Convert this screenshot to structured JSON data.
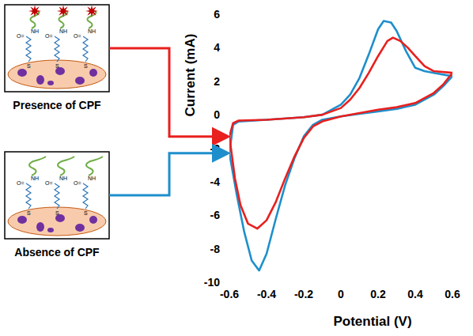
{
  "chart_data": {
    "type": "line",
    "x_label": "Potential (V)",
    "y_label": "Current (mA)",
    "xlim": [
      -0.6,
      0.6
    ],
    "xticks": [
      -0.6,
      -0.4,
      -0.2,
      0,
      0.2,
      0.4,
      0.6
    ],
    "ylim": [
      -10,
      6
    ],
    "yticks": [
      -10,
      -8,
      -6,
      -4,
      -2,
      0,
      2,
      4,
      6
    ],
    "grid": false,
    "series": [
      {
        "name": "Presence of CPF",
        "color": "#e8201e",
        "x": [
          -0.6,
          -0.58,
          -0.55,
          -0.4,
          -0.2,
          -0.1,
          0,
          0.05,
          0.1,
          0.15,
          0.2,
          0.25,
          0.28,
          0.32,
          0.36,
          0.4,
          0.45,
          0.5,
          0.6,
          0.55,
          0.5,
          0.4,
          0.3,
          0.2,
          0.1,
          0,
          -0.1,
          -0.15,
          -0.2,
          -0.25,
          -0.3,
          -0.35,
          -0.4,
          -0.45,
          -0.5,
          -0.54,
          -0.57,
          -0.6
        ],
        "values": [
          -1.3,
          -0.5,
          -0.35,
          -0.3,
          -0.15,
          0,
          0.4,
          0.9,
          1.6,
          2.5,
          3.5,
          4.4,
          4.6,
          4.4,
          4.0,
          3.5,
          2.9,
          2.6,
          2.5,
          1.8,
          1.3,
          0.7,
          0.45,
          0.3,
          0.1,
          -0.1,
          -0.4,
          -0.7,
          -1.4,
          -2.5,
          -3.8,
          -5.2,
          -6.3,
          -6.8,
          -6.5,
          -5.4,
          -3.8,
          -1.3
        ]
      },
      {
        "name": "Absence of CPF",
        "color": "#1e8fcc",
        "x": [
          -0.6,
          -0.58,
          -0.55,
          -0.4,
          -0.2,
          -0.1,
          0,
          0.05,
          0.1,
          0.15,
          0.2,
          0.23,
          0.27,
          0.3,
          0.35,
          0.4,
          0.45,
          0.5,
          0.6,
          0.55,
          0.5,
          0.4,
          0.3,
          0.2,
          0.1,
          0,
          -0.1,
          -0.15,
          -0.2,
          -0.25,
          -0.3,
          -0.35,
          -0.4,
          -0.44,
          -0.48,
          -0.52,
          -0.56,
          -0.6
        ],
        "values": [
          -2.3,
          -0.6,
          -0.4,
          -0.3,
          -0.15,
          0,
          0.6,
          1.2,
          2.2,
          3.6,
          5.1,
          5.6,
          5.5,
          5.0,
          3.8,
          2.8,
          2.6,
          2.5,
          2.3,
          1.7,
          1.2,
          0.6,
          0.35,
          0.2,
          0.05,
          -0.1,
          -0.3,
          -0.6,
          -1.3,
          -2.6,
          -4.2,
          -6.2,
          -8.3,
          -9.3,
          -8.7,
          -7.0,
          -4.8,
          -2.3
        ]
      }
    ]
  },
  "schematic": {
    "carbonyl": "O=",
    "amine": "NH",
    "sulfur": "S"
  }
}
